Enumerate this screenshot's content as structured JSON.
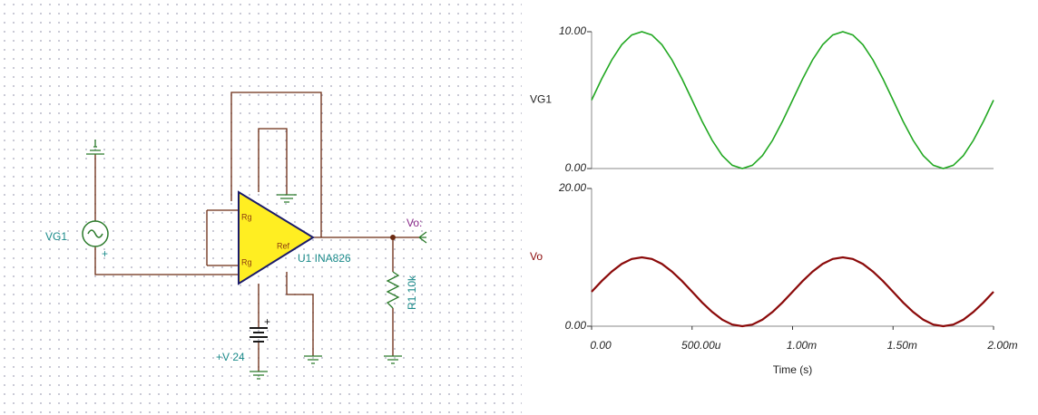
{
  "schematic": {
    "source": "VG1",
    "plus_source": "+",
    "output": "Vo:",
    "amp": "U1 INA826",
    "pin_rg1": "Rg",
    "pin_rg2": "Rg",
    "pin_ref": "Ref",
    "resistor": "R1 10k",
    "supply": "+V 24",
    "plus_supply": "+"
  },
  "chart_data": [
    {
      "type": "line",
      "ylabel": "VG1",
      "x": [
        0,
        5e-05,
        0.0001,
        0.00015,
        0.0002,
        0.00025,
        0.0003,
        0.00035,
        0.0004,
        0.00045,
        0.0005,
        0.00055,
        0.0006,
        0.00065,
        0.0007,
        0.00075,
        0.0008,
        0.00085,
        0.0009,
        0.00095,
        0.001,
        0.00105,
        0.0011,
        0.00115,
        0.0012,
        0.00125,
        0.0013,
        0.00135,
        0.0014,
        0.00145,
        0.0015,
        0.00155,
        0.0016,
        0.00165,
        0.0017,
        0.00175,
        0.0018,
        0.00185,
        0.0019,
        0.00195,
        0.002
      ],
      "series": [
        {
          "name": "VG1",
          "color": "#22a822",
          "values": [
            5,
            6.55,
            7.94,
            9.05,
            9.76,
            10,
            9.76,
            9.05,
            7.94,
            6.55,
            5,
            3.45,
            2.06,
            0.95,
            0.24,
            0,
            0.24,
            0.95,
            2.06,
            3.45,
            5,
            6.55,
            7.94,
            9.05,
            9.76,
            10,
            9.76,
            9.05,
            7.94,
            6.55,
            5,
            3.45,
            2.06,
            0.95,
            0.24,
            0,
            0.24,
            0.95,
            2.06,
            3.45,
            5
          ]
        }
      ],
      "xlim": [
        0,
        0.002
      ],
      "ylim": [
        0,
        10
      ],
      "yticks": [
        {
          "value": 0,
          "label": "0.00"
        },
        {
          "value": 10,
          "label": "10.00"
        }
      ]
    },
    {
      "type": "line",
      "ylabel": "Vo",
      "xlabel": "Time (s)",
      "x": [
        0,
        5e-05,
        0.0001,
        0.00015,
        0.0002,
        0.00025,
        0.0003,
        0.00035,
        0.0004,
        0.00045,
        0.0005,
        0.00055,
        0.0006,
        0.00065,
        0.0007,
        0.00075,
        0.0008,
        0.00085,
        0.0009,
        0.00095,
        0.001,
        0.00105,
        0.0011,
        0.00115,
        0.0012,
        0.00125,
        0.0013,
        0.00135,
        0.0014,
        0.00145,
        0.0015,
        0.00155,
        0.0016,
        0.00165,
        0.0017,
        0.00175,
        0.0018,
        0.00185,
        0.0019,
        0.00195,
        0.002
      ],
      "series": [
        {
          "name": "Vo",
          "color": "#8b0a0a",
          "values": [
            5,
            6.55,
            7.94,
            9.05,
            9.76,
            10,
            9.76,
            9.05,
            7.94,
            6.55,
            5,
            3.45,
            2.06,
            0.95,
            0.24,
            0,
            0.24,
            0.95,
            2.06,
            3.45,
            5,
            6.55,
            7.94,
            9.05,
            9.76,
            10,
            9.76,
            9.05,
            7.94,
            6.55,
            5,
            3.45,
            2.06,
            0.95,
            0.24,
            0,
            0.24,
            0.95,
            2.06,
            3.45,
            5
          ]
        }
      ],
      "xlim": [
        0,
        0.002
      ],
      "ylim": [
        0,
        20
      ],
      "xticks": [
        {
          "value": 0,
          "label": "0.00"
        },
        {
          "value": 0.0005,
          "label": "500.00u"
        },
        {
          "value": 0.001,
          "label": "1.00m"
        },
        {
          "value": 0.0015,
          "label": "1.50m"
        },
        {
          "value": 0.002,
          "label": "2.00m"
        }
      ],
      "yticks": [
        {
          "value": 0,
          "label": "0.00"
        },
        {
          "value": 20,
          "label": "20.00"
        }
      ]
    }
  ]
}
